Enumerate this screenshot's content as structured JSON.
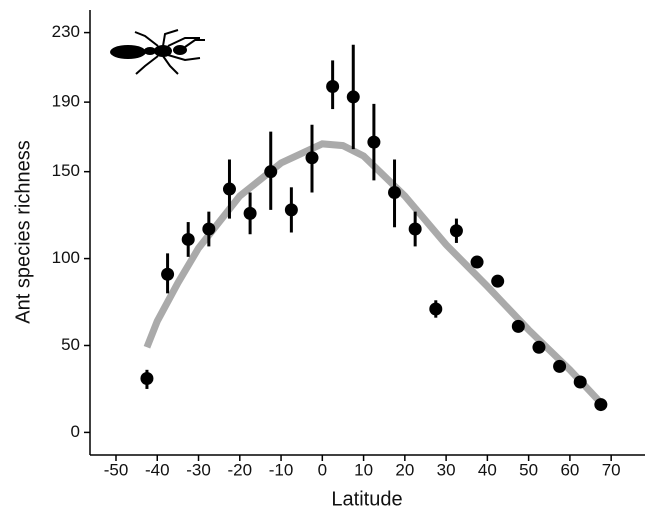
{
  "chart_data": {
    "type": "scatter",
    "x_label": "Latitude",
    "y_label": "Ant species richness",
    "xlim": [
      -56.3,
      78.2
    ],
    "ylim": [
      -13,
      243
    ],
    "xticks": [
      -50,
      -40,
      -30,
      -20,
      -10,
      0,
      10,
      20,
      30,
      40,
      50,
      60,
      70
    ],
    "yticks": [
      0,
      50,
      100,
      150,
      190,
      230
    ],
    "color": "#000000",
    "x": [
      -42.5,
      -37.5,
      -32.5,
      -27.5,
      -22.5,
      -17.5,
      -12.5,
      -7.5,
      -2.5,
      2.5,
      7.5,
      12.5,
      17.5,
      22.5,
      27.5,
      32.5,
      37.5,
      42.5,
      47.5,
      52.5,
      57.5,
      62.5,
      67.5
    ],
    "values": [
      31,
      91,
      111,
      117,
      140,
      126,
      150,
      128,
      158,
      199,
      193,
      167,
      138,
      117,
      71,
      116,
      98,
      87,
      61,
      49,
      38,
      29,
      16
    ],
    "lower": [
      25,
      80,
      101,
      107,
      123,
      114,
      128,
      115,
      138,
      186,
      163,
      145,
      118,
      107,
      66,
      109,
      95,
      84,
      58,
      47,
      36,
      27,
      15
    ],
    "upper": [
      36,
      103,
      121,
      127,
      157,
      138,
      173,
      141,
      177,
      214,
      223,
      189,
      157,
      127,
      76,
      123,
      101,
      90,
      64,
      51,
      40,
      31,
      17
    ],
    "fit": {
      "color": "#aaaaaa",
      "x": [
        -42.5,
        -40,
        -35,
        -30,
        -20,
        -10,
        0,
        5,
        10,
        20,
        30,
        40,
        50,
        60,
        67.5
      ],
      "y": [
        49,
        64,
        86,
        106,
        136,
        155,
        166,
        165,
        159,
        136,
        108,
        84,
        59,
        36,
        17
      ]
    }
  }
}
